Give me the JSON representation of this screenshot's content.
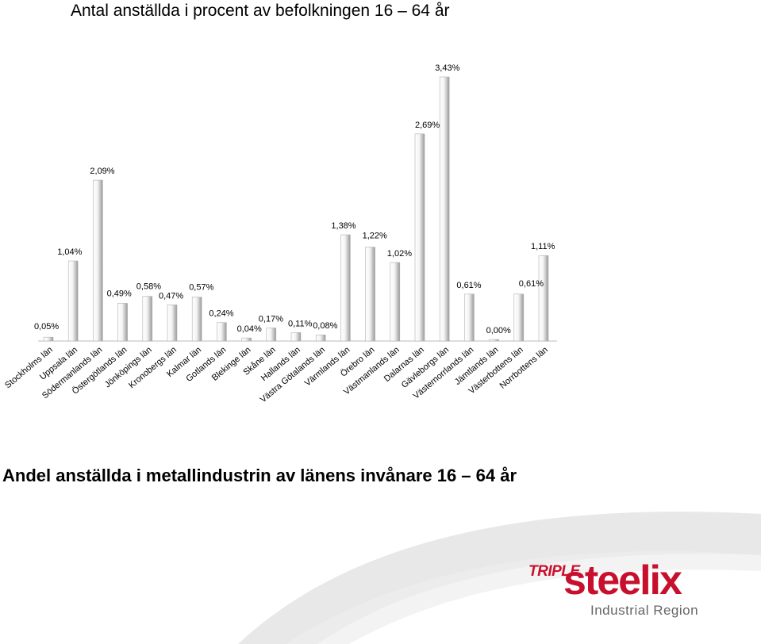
{
  "colors": {
    "bar_light": "#ffffff",
    "bar_dark": "#9a9a9a",
    "axis": "#bbbbbb",
    "logo_red": "#c8102e",
    "logo_grey": "#666666",
    "swoosh": "#cccccc"
  },
  "chart_data": {
    "type": "bar",
    "title": "Antal anställda i procent av befolkningen 16 – 64 år",
    "categories": [
      "Stockholms län",
      "Uppsala län",
      "Södermanlands län",
      "Östergötlands län",
      "Jönköpings län",
      "Kronobergs län",
      "Kalmar län",
      "Gotlands län",
      "Blekinge län",
      "Skåne län",
      "Hallands län",
      "Västra Götalands län",
      "Värmlands län",
      "Örebro län",
      "Västmanlands län",
      "Dalarnas län",
      "Gävleborgs län",
      "Västernorrlands län",
      "Jämtlands län",
      "Västerbottens län",
      "Norrbottens län"
    ],
    "values": [
      0.05,
      1.04,
      2.09,
      0.49,
      0.58,
      0.47,
      0.57,
      0.24,
      0.04,
      0.17,
      0.11,
      0.08,
      1.38,
      1.22,
      1.02,
      2.69,
      3.43,
      0.61,
      0.0,
      0.61,
      1.11
    ],
    "labels": [
      "0,05%",
      "1,04%",
      "2,09%",
      "0,49%",
      "0,58%",
      "0,47%",
      "0,57%",
      "0,24%",
      "0,04%",
      "0,17%",
      "0,11%",
      "0,08%",
      "1,38%",
      "1,22%",
      "1,02%",
      "2,69%",
      "3,43%",
      "0,61%",
      "0,00%",
      "0,61%",
      "1,11%"
    ],
    "xlabel": "",
    "ylabel": "",
    "ylim": [
      0,
      3.43
    ],
    "grid": false,
    "legend": "none"
  },
  "footer": {
    "subtitle": "Andel anställda i metallindustrin av länens invånare 16 – 64 år"
  },
  "logo": {
    "word1": "TRIPLE",
    "word2": "steelix",
    "tagline": "Industrial Region"
  }
}
